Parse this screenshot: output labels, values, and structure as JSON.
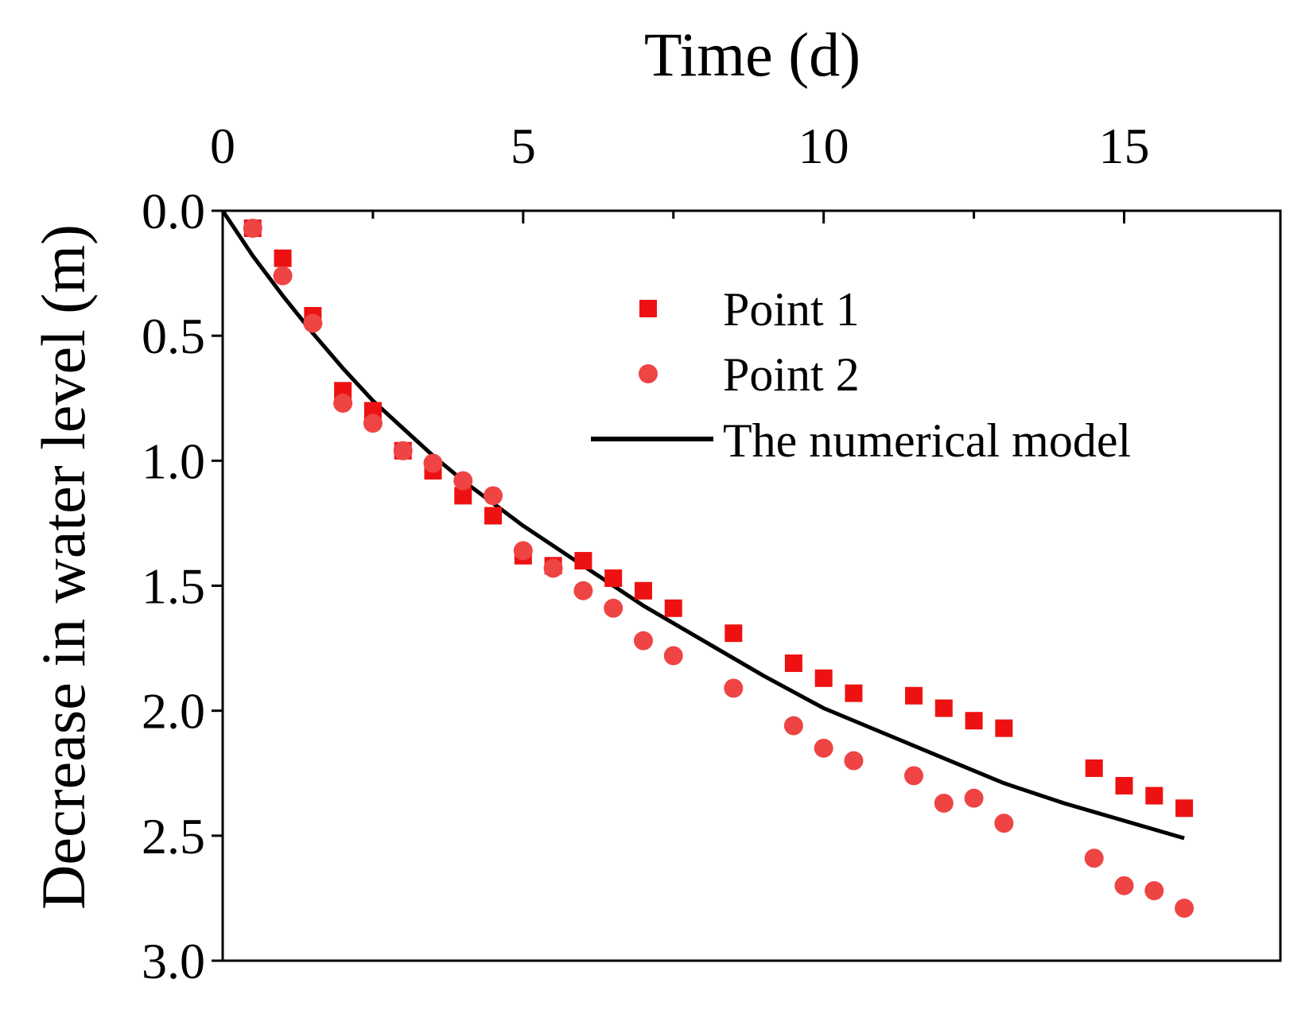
{
  "chart_data": {
    "type": "scatter",
    "xlabel": "Time (d)",
    "ylabel": "Decrease in water level (m)",
    "xlim": [
      0,
      17.6
    ],
    "ylim": [
      0,
      3.0
    ],
    "x_axis_position": "top",
    "y_axis_inverted": true,
    "xticks": [
      0,
      5,
      10,
      15
    ],
    "xtick_labels": [
      "0",
      "5",
      "10",
      "15"
    ],
    "x_minor_ticks": [
      2.5,
      7.5,
      12.5
    ],
    "yticks": [
      0,
      0.5,
      1.0,
      1.5,
      2.0,
      2.5,
      3.0
    ],
    "ytick_labels": [
      "0.0",
      "0.5",
      "1.0",
      "1.5",
      "2.0",
      "2.5",
      "3.0"
    ],
    "legend_position": "top-right",
    "series": [
      {
        "name": "Point 1",
        "marker": "square",
        "color": "#ee1111",
        "points": [
          [
            0.5,
            0.07
          ],
          [
            1,
            0.19
          ],
          [
            1.5,
            0.42
          ],
          [
            2,
            0.72
          ],
          [
            2.5,
            0.8
          ],
          [
            3,
            0.96
          ],
          [
            3.5,
            1.04
          ],
          [
            4,
            1.14
          ],
          [
            4.5,
            1.22
          ],
          [
            5,
            1.38
          ],
          [
            5.5,
            1.42
          ],
          [
            6,
            1.4
          ],
          [
            6.5,
            1.47
          ],
          [
            7,
            1.52
          ],
          [
            7.5,
            1.59
          ],
          [
            8.5,
            1.69
          ],
          [
            9.5,
            1.81
          ],
          [
            10,
            1.87
          ],
          [
            10.5,
            1.93
          ],
          [
            11.5,
            1.94
          ],
          [
            12,
            1.99
          ],
          [
            12.5,
            2.04
          ],
          [
            13,
            2.07
          ],
          [
            14.5,
            2.23
          ],
          [
            15,
            2.3
          ],
          [
            15.5,
            2.34
          ],
          [
            16,
            2.39
          ]
        ]
      },
      {
        "name": "Point 2",
        "marker": "circle",
        "color": "#ee4444",
        "points": [
          [
            0.5,
            0.07
          ],
          [
            1,
            0.26
          ],
          [
            1.5,
            0.45
          ],
          [
            2,
            0.77
          ],
          [
            2.5,
            0.85
          ],
          [
            3,
            0.96
          ],
          [
            3.5,
            1.01
          ],
          [
            4,
            1.08
          ],
          [
            4.5,
            1.14
          ],
          [
            5,
            1.36
          ],
          [
            5.5,
            1.43
          ],
          [
            6,
            1.52
          ],
          [
            6.5,
            1.59
          ],
          [
            7,
            1.72
          ],
          [
            7.5,
            1.78
          ],
          [
            8.5,
            1.91
          ],
          [
            9.5,
            2.06
          ],
          [
            10,
            2.15
          ],
          [
            10.5,
            2.2
          ],
          [
            11.5,
            2.26
          ],
          [
            12,
            2.37
          ],
          [
            12.5,
            2.35
          ],
          [
            13,
            2.45
          ],
          [
            14.5,
            2.59
          ],
          [
            15,
            2.7
          ],
          [
            15.5,
            2.72
          ],
          [
            16,
            2.79
          ]
        ]
      },
      {
        "name": "The numerical model",
        "marker": "line",
        "color": "#000000",
        "points": [
          [
            0,
            0
          ],
          [
            0.5,
            0.18
          ],
          [
            1,
            0.34
          ],
          [
            1.5,
            0.49
          ],
          [
            2,
            0.63
          ],
          [
            2.5,
            0.76
          ],
          [
            3,
            0.87
          ],
          [
            3.5,
            0.98
          ],
          [
            4,
            1.08
          ],
          [
            5,
            1.26
          ],
          [
            6,
            1.42
          ],
          [
            7,
            1.58
          ],
          [
            8,
            1.72
          ],
          [
            9,
            1.86
          ],
          [
            10,
            1.99
          ],
          [
            11,
            2.09
          ],
          [
            12,
            2.19
          ],
          [
            13,
            2.29
          ],
          [
            14,
            2.37
          ],
          [
            15,
            2.44
          ],
          [
            16,
            2.51
          ]
        ]
      }
    ]
  }
}
